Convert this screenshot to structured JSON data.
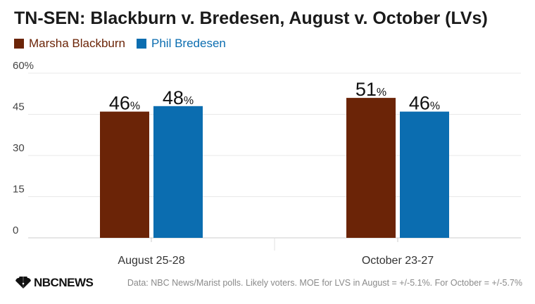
{
  "chart_data": {
    "type": "bar",
    "title": "TN-SEN: Blackburn v. Bredesen, August v. October (LVs)",
    "categories": [
      "August 25-28",
      "October 23-27"
    ],
    "series": [
      {
        "name": "Marsha Blackburn",
        "values": [
          46,
          51
        ],
        "color": "#6b2407"
      },
      {
        "name": "Phil Bredesen",
        "values": [
          48,
          46
        ],
        "color": "#0b6db0"
      }
    ],
    "y_ticks": [
      "60%",
      "45",
      "30",
      "15",
      "0"
    ],
    "y_tick_values": [
      60,
      45,
      30,
      15,
      0
    ],
    "ylim": [
      0,
      60
    ],
    "value_suffix": "%",
    "grid": true,
    "legend_position": "top-left",
    "xlabel": "",
    "ylabel": ""
  },
  "footer": {
    "logo_text": "NBCNEWS",
    "logo_icon": "peacock-icon",
    "source": "Data: NBC News/Marist polls. Likely voters. MOE for LVS in August = +/-5.1%. For October = +/-5.7%"
  }
}
